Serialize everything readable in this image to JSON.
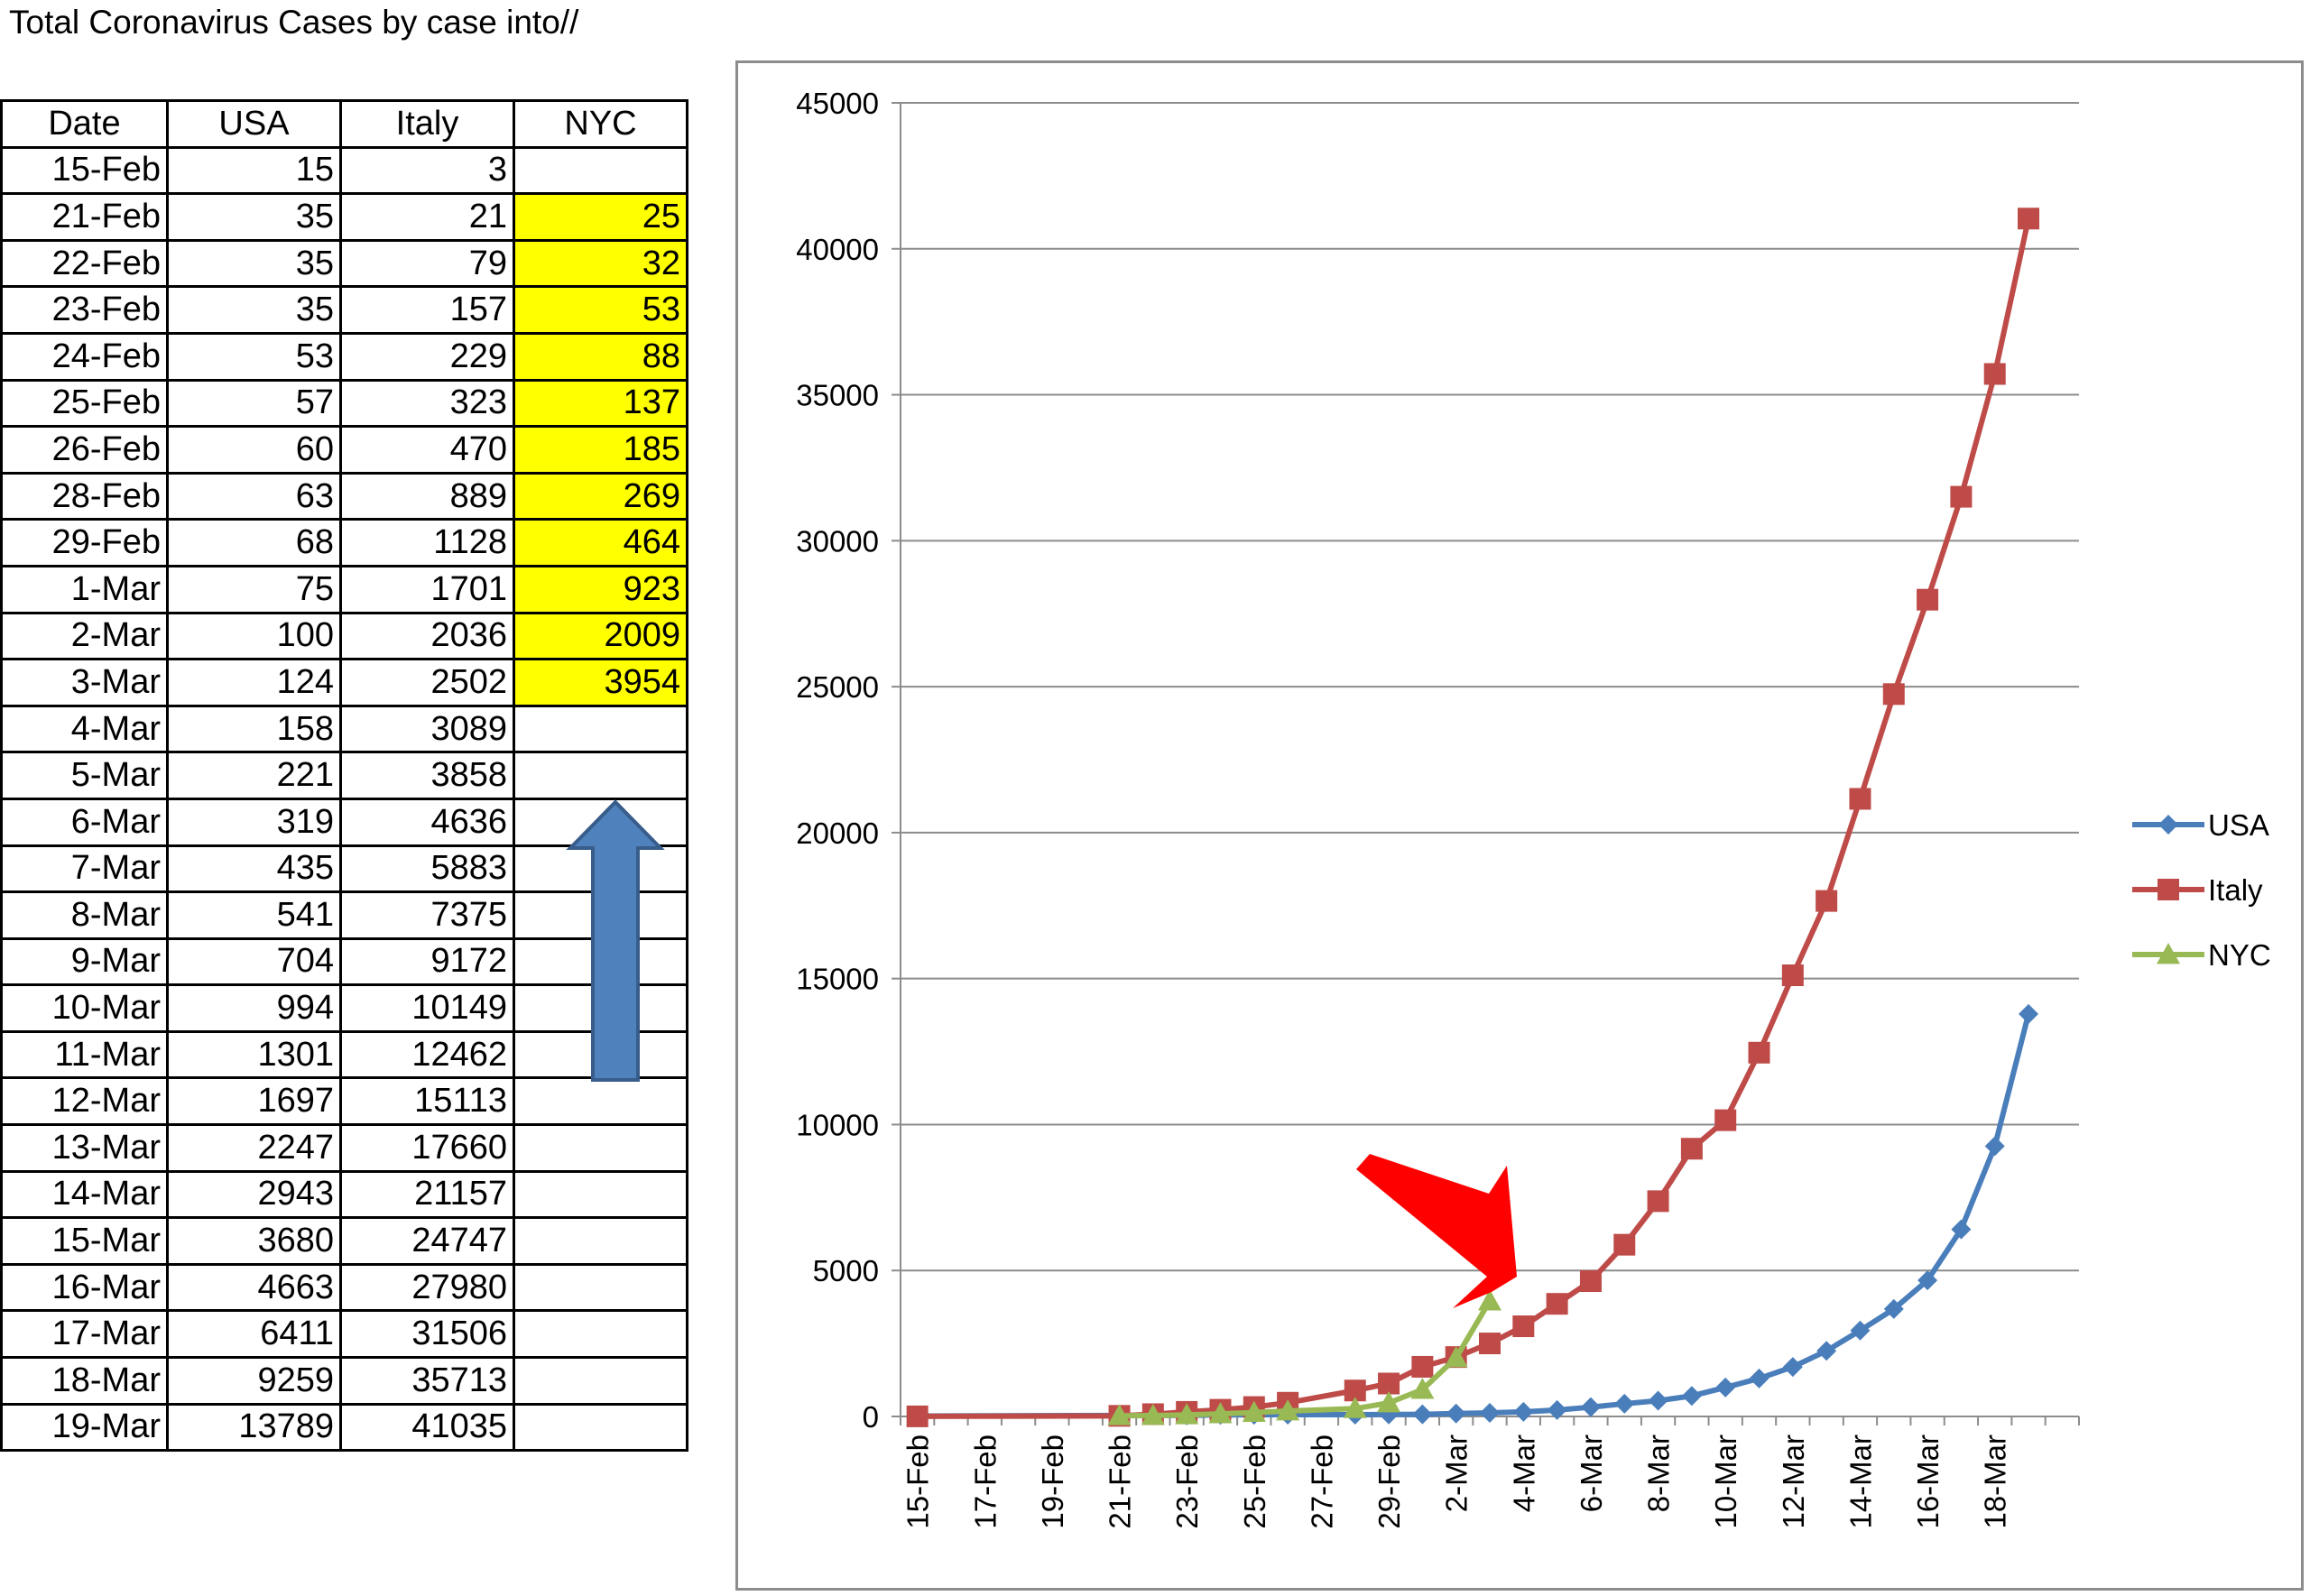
{
  "title": "Total Coronavirus Cases by case into//",
  "table": {
    "headers": [
      "Date",
      "USA",
      "Italy",
      "NYC"
    ],
    "rows": [
      [
        "15-Feb",
        "15",
        "3",
        ""
      ],
      [
        "21-Feb",
        "35",
        "21",
        "25"
      ],
      [
        "22-Feb",
        "35",
        "79",
        "32"
      ],
      [
        "23-Feb",
        "35",
        "157",
        "53"
      ],
      [
        "24-Feb",
        "53",
        "229",
        "88"
      ],
      [
        "25-Feb",
        "57",
        "323",
        "137"
      ],
      [
        "26-Feb",
        "60",
        "470",
        "185"
      ],
      [
        "28-Feb",
        "63",
        "889",
        "269"
      ],
      [
        "29-Feb",
        "68",
        "1128",
        "464"
      ],
      [
        "1-Mar",
        "75",
        "1701",
        "923"
      ],
      [
        "2-Mar",
        "100",
        "2036",
        "2009"
      ],
      [
        "3-Mar",
        "124",
        "2502",
        "3954"
      ],
      [
        "4-Mar",
        "158",
        "3089",
        ""
      ],
      [
        "5-Mar",
        "221",
        "3858",
        ""
      ],
      [
        "6-Mar",
        "319",
        "4636",
        ""
      ],
      [
        "7-Mar",
        "435",
        "5883",
        ""
      ],
      [
        "8-Mar",
        "541",
        "7375",
        ""
      ],
      [
        "9-Mar",
        "704",
        "9172",
        ""
      ],
      [
        "10-Mar",
        "994",
        "10149",
        ""
      ],
      [
        "11-Mar",
        "1301",
        "12462",
        ""
      ],
      [
        "12-Mar",
        "1697",
        "15113",
        ""
      ],
      [
        "13-Mar",
        "2247",
        "17660",
        ""
      ],
      [
        "14-Mar",
        "2943",
        "21157",
        ""
      ],
      [
        "15-Mar",
        "3680",
        "24747",
        ""
      ],
      [
        "16-Mar",
        "4663",
        "27980",
        ""
      ],
      [
        "17-Mar",
        "6411",
        "31506",
        ""
      ],
      [
        "18-Mar",
        "9259",
        "35713",
        ""
      ],
      [
        "19-Mar",
        "13789",
        "41035",
        ""
      ]
    ],
    "highlight_color": "#ffff00"
  },
  "chart_data": {
    "type": "line",
    "x": [
      "15-Feb",
      "21-Feb",
      "22-Feb",
      "23-Feb",
      "24-Feb",
      "25-Feb",
      "26-Feb",
      "28-Feb",
      "29-Feb",
      "1-Mar",
      "2-Mar",
      "3-Mar",
      "4-Mar",
      "5-Mar",
      "6-Mar",
      "7-Mar",
      "8-Mar",
      "9-Mar",
      "10-Mar",
      "11-Mar",
      "12-Mar",
      "13-Mar",
      "14-Mar",
      "15-Mar",
      "16-Mar",
      "17-Mar",
      "18-Mar",
      "19-Mar"
    ],
    "x_tick_labels": [
      "15-Feb",
      "17-Feb",
      "19-Feb",
      "21-Feb",
      "23-Feb",
      "25-Feb",
      "27-Feb",
      "29-Feb",
      "2-Mar",
      "4-Mar",
      "6-Mar",
      "8-Mar",
      "10-Mar",
      "12-Mar",
      "14-Mar",
      "16-Mar",
      "18-Mar"
    ],
    "series": [
      {
        "name": "USA",
        "color": "#4a7ebb",
        "marker": "diamond",
        "values": [
          15,
          35,
          35,
          35,
          53,
          57,
          60,
          63,
          68,
          75,
          100,
          124,
          158,
          221,
          319,
          435,
          541,
          704,
          994,
          1301,
          1697,
          2247,
          2943,
          3680,
          4663,
          6411,
          9259,
          13789
        ]
      },
      {
        "name": "Italy",
        "color": "#be4b48",
        "marker": "square",
        "values": [
          3,
          21,
          79,
          157,
          229,
          323,
          470,
          889,
          1128,
          1701,
          2036,
          2502,
          3089,
          3858,
          4636,
          5883,
          7375,
          9172,
          10149,
          12462,
          15113,
          17660,
          21157,
          24747,
          27980,
          31506,
          35713,
          41035
        ]
      },
      {
        "name": "NYC",
        "color": "#98b954",
        "marker": "triangle",
        "values": [
          null,
          25,
          32,
          53,
          88,
          137,
          185,
          269,
          464,
          923,
          2009,
          3954,
          null,
          null,
          null,
          null,
          null,
          null,
          null,
          null,
          null,
          null,
          null,
          null,
          null,
          null,
          null,
          null
        ]
      }
    ],
    "ylim": [
      0,
      45000
    ],
    "y_ticks": [
      0,
      5000,
      10000,
      15000,
      20000,
      25000,
      30000,
      35000,
      40000,
      45000
    ],
    "grid": "horizontal",
    "legend": "right",
    "annotations": [
      {
        "kind": "arrow",
        "color": "#ff0000",
        "points_to": "NYC line near 3-Mar"
      }
    ]
  },
  "decoration": {
    "up_arrow_color": "#4f81bd"
  }
}
